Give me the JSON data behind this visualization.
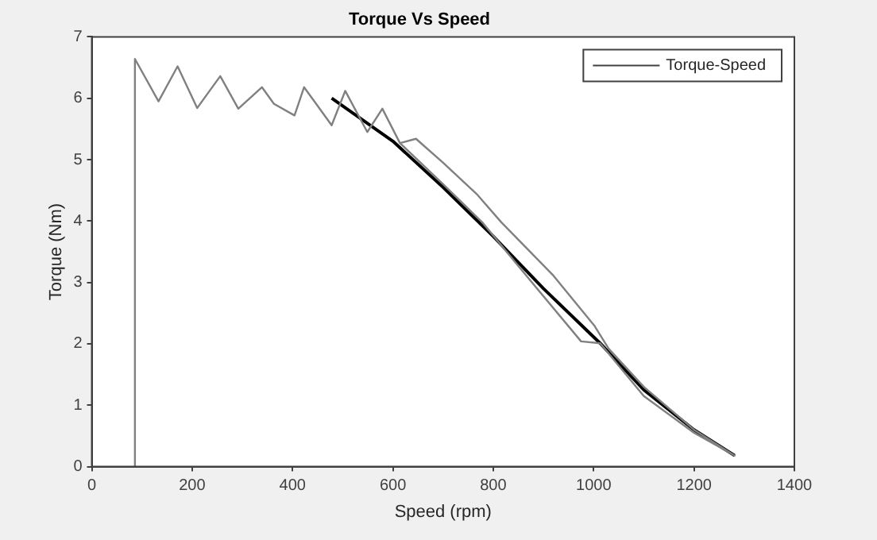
{
  "chart_data": {
    "type": "line",
    "title": "Torque Vs Speed",
    "xlabel": "Speed (rpm)",
    "ylabel": "Torque (Nm)",
    "xlim": [
      0,
      1400
    ],
    "ylim": [
      0,
      7
    ],
    "xticks": [
      0,
      200,
      400,
      600,
      800,
      1000,
      1200,
      1400
    ],
    "yticks": [
      0,
      1,
      2,
      3,
      4,
      5,
      6,
      7
    ],
    "legend": "top right",
    "marker": "none",
    "line_style": "solid",
    "series": [
      {
        "name": "Torque-Speed",
        "color": "#808080",
        "x": [
          86,
          86,
          133,
          171,
          210,
          256,
          292,
          339,
          363,
          404,
          423,
          478,
          505,
          549,
          579,
          614,
          646,
          700,
          767,
          816,
          920,
          1002,
          1030,
          1100,
          1200,
          1281,
          1200,
          1100,
          1013,
          975,
          870,
          778,
          700,
          614
        ],
        "values": [
          0,
          6.64,
          5.95,
          6.52,
          5.84,
          6.36,
          5.83,
          6.18,
          5.91,
          5.72,
          6.18,
          5.56,
          6.12,
          5.45,
          5.83,
          5.27,
          5.34,
          4.95,
          4.44,
          3.98,
          3.11,
          2.29,
          1.92,
          1.3,
          0.6,
          0.18,
          0.55,
          1.15,
          2.01,
          2.04,
          3.07,
          3.98,
          4.6,
          5.27
        ]
      },
      {
        "color": "#000000",
        "x": [
          478,
          600,
          700,
          800,
          900,
          1013,
          1100,
          1200,
          1281
        ],
        "values": [
          6.0,
          5.3,
          4.55,
          3.75,
          2.9,
          2.01,
          1.25,
          0.6,
          0.18
        ]
      }
    ]
  }
}
